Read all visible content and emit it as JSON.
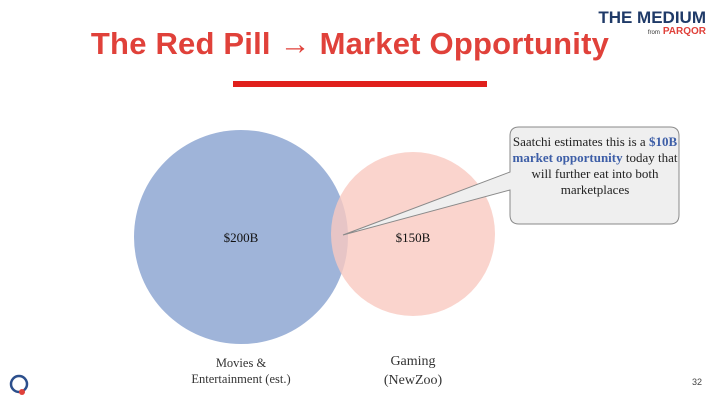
{
  "header": {
    "title": "The Red Pill → Market Opportunity"
  },
  "brand": {
    "name": "THE MEDIUM",
    "from": "from",
    "parent": "PARQOR"
  },
  "circles": [
    {
      "value": "$200B",
      "label_lines": [
        "Movies &",
        "Entertainment (est.)"
      ]
    },
    {
      "value": "$150B",
      "label_lines": [
        "Gaming",
        "(NewZoo)"
      ]
    }
  ],
  "callout": {
    "parts": [
      "Saatchi estimates this is a ",
      "$10B market opportunity",
      " today that will further eat into both marketplaces"
    ]
  },
  "page_number": "32"
}
